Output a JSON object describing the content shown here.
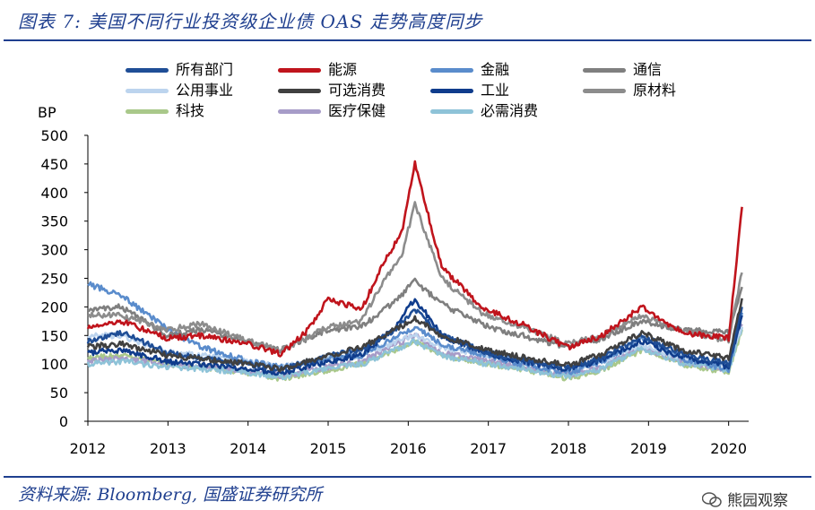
{
  "title": "图表 7:  美国不同行业投资级企业债 OAS 走势高度同步",
  "source": "资料来源:  Bloomberg,  国盛证券研究所",
  "watermark": "熊园观察",
  "chart_data": {
    "type": "line",
    "ylabel": "BP",
    "ylim": [
      0,
      500
    ],
    "yticks": [
      0,
      50,
      100,
      150,
      200,
      250,
      300,
      350,
      400,
      450,
      500
    ],
    "xlim": [
      "2012-01",
      "2020-03"
    ],
    "xticks": [
      "2012",
      "2013",
      "2014",
      "2015",
      "2016",
      "2017",
      "2018",
      "2019",
      "2020"
    ],
    "legend_position": "top",
    "grid": false,
    "series": [
      {
        "name": "所有部门",
        "color": "#1f4e96",
        "points": [
          [
            "2012-01",
            140
          ],
          [
            "2012-06",
            155
          ],
          [
            "2013-01",
            120
          ],
          [
            "2013-06",
            110
          ],
          [
            "2014-01",
            100
          ],
          [
            "2014-06",
            90
          ],
          [
            "2015-01",
            115
          ],
          [
            "2015-06",
            125
          ],
          [
            "2015-11",
            160
          ],
          [
            "2016-02",
            195
          ],
          [
            "2016-06",
            150
          ],
          [
            "2017-01",
            120
          ],
          [
            "2017-06",
            108
          ],
          [
            "2018-01",
            92
          ],
          [
            "2018-06",
            112
          ],
          [
            "2018-12",
            150
          ],
          [
            "2019-06",
            118
          ],
          [
            "2020-01",
            100
          ],
          [
            "2020-03",
            200
          ]
        ]
      },
      {
        "name": "能源",
        "color": "#c0141c",
        "points": [
          [
            "2012-01",
            165
          ],
          [
            "2012-06",
            175
          ],
          [
            "2013-01",
            145
          ],
          [
            "2013-06",
            150
          ],
          [
            "2014-01",
            135
          ],
          [
            "2014-06",
            118
          ],
          [
            "2014-10",
            160
          ],
          [
            "2015-01",
            215
          ],
          [
            "2015-06",
            195
          ],
          [
            "2015-09",
            270
          ],
          [
            "2015-12",
            330
          ],
          [
            "2016-02",
            450
          ],
          [
            "2016-06",
            270
          ],
          [
            "2016-12",
            200
          ],
          [
            "2017-06",
            170
          ],
          [
            "2018-01",
            128
          ],
          [
            "2018-06",
            150
          ],
          [
            "2018-12",
            200
          ],
          [
            "2019-06",
            155
          ],
          [
            "2020-01",
            145
          ],
          [
            "2020-03",
            375
          ]
        ]
      },
      {
        "name": "金融",
        "color": "#5a8ccc",
        "points": [
          [
            "2012-01",
            240
          ],
          [
            "2012-06",
            220
          ],
          [
            "2013-01",
            160
          ],
          [
            "2013-06",
            130
          ],
          [
            "2014-01",
            105
          ],
          [
            "2014-06",
            95
          ],
          [
            "2015-01",
            110
          ],
          [
            "2015-06",
            115
          ],
          [
            "2016-02",
            165
          ],
          [
            "2016-06",
            135
          ],
          [
            "2017-01",
            115
          ],
          [
            "2017-06",
            100
          ],
          [
            "2018-01",
            85
          ],
          [
            "2018-06",
            105
          ],
          [
            "2018-12",
            145
          ],
          [
            "2019-06",
            110
          ],
          [
            "2020-01",
            90
          ],
          [
            "2020-03",
            190
          ]
        ]
      },
      {
        "name": "通信",
        "color": "#7f7f7f",
        "points": [
          [
            "2012-01",
            195
          ],
          [
            "2012-06",
            200
          ],
          [
            "2013-01",
            150
          ],
          [
            "2013-06",
            160
          ],
          [
            "2014-01",
            140
          ],
          [
            "2014-06",
            125
          ],
          [
            "2015-01",
            160
          ],
          [
            "2015-06",
            165
          ],
          [
            "2015-11",
            210
          ],
          [
            "2016-02",
            245
          ],
          [
            "2016-06",
            205
          ],
          [
            "2017-01",
            165
          ],
          [
            "2017-06",
            150
          ],
          [
            "2018-01",
            128
          ],
          [
            "2018-06",
            145
          ],
          [
            "2018-12",
            175
          ],
          [
            "2019-06",
            160
          ],
          [
            "2020-01",
            155
          ],
          [
            "2020-03",
            235
          ]
        ]
      },
      {
        "name": "公用事业",
        "color": "#bcd4ee",
        "points": [
          [
            "2012-01",
            150
          ],
          [
            "2012-06",
            150
          ],
          [
            "2013-01",
            120
          ],
          [
            "2013-06",
            115
          ],
          [
            "2014-01",
            105
          ],
          [
            "2014-06",
            95
          ],
          [
            "2015-01",
            110
          ],
          [
            "2015-06",
            115
          ],
          [
            "2016-02",
            150
          ],
          [
            "2016-06",
            130
          ],
          [
            "2017-01",
            115
          ],
          [
            "2017-06",
            105
          ],
          [
            "2018-01",
            90
          ],
          [
            "2018-06",
            105
          ],
          [
            "2018-12",
            135
          ],
          [
            "2019-06",
            110
          ],
          [
            "2020-01",
            100
          ],
          [
            "2020-03",
            165
          ]
        ]
      },
      {
        "name": "可选消费",
        "color": "#404040",
        "points": [
          [
            "2012-01",
            130
          ],
          [
            "2012-06",
            135
          ],
          [
            "2013-01",
            115
          ],
          [
            "2013-06",
            110
          ],
          [
            "2014-01",
            100
          ],
          [
            "2014-06",
            92
          ],
          [
            "2015-01",
            115
          ],
          [
            "2015-06",
            130
          ],
          [
            "2015-11",
            160
          ],
          [
            "2016-02",
            180
          ],
          [
            "2016-06",
            150
          ],
          [
            "2017-01",
            125
          ],
          [
            "2017-06",
            112
          ],
          [
            "2018-01",
            98
          ],
          [
            "2018-06",
            118
          ],
          [
            "2018-12",
            155
          ],
          [
            "2019-06",
            125
          ],
          [
            "2020-01",
            110
          ],
          [
            "2020-03",
            215
          ]
        ]
      },
      {
        "name": "工业",
        "color": "#0f3c8c",
        "points": [
          [
            "2012-01",
            120
          ],
          [
            "2012-06",
            125
          ],
          [
            "2013-01",
            105
          ],
          [
            "2013-06",
            100
          ],
          [
            "2014-01",
            92
          ],
          [
            "2014-06",
            85
          ],
          [
            "2015-01",
            105
          ],
          [
            "2015-06",
            115
          ],
          [
            "2015-11",
            165
          ],
          [
            "2016-02",
            215
          ],
          [
            "2016-06",
            150
          ],
          [
            "2017-01",
            118
          ],
          [
            "2017-06",
            105
          ],
          [
            "2018-01",
            90
          ],
          [
            "2018-06",
            108
          ],
          [
            "2018-12",
            140
          ],
          [
            "2019-06",
            112
          ],
          [
            "2020-01",
            95
          ],
          [
            "2020-03",
            185
          ]
        ]
      },
      {
        "name": "原材料",
        "color": "#8c8c8c",
        "points": [
          [
            "2012-01",
            185
          ],
          [
            "2012-06",
            185
          ],
          [
            "2013-01",
            160
          ],
          [
            "2013-06",
            170
          ],
          [
            "2014-01",
            140
          ],
          [
            "2014-06",
            125
          ],
          [
            "2015-01",
            165
          ],
          [
            "2015-06",
            175
          ],
          [
            "2015-09",
            240
          ],
          [
            "2015-12",
            290
          ],
          [
            "2016-02",
            380
          ],
          [
            "2016-06",
            250
          ],
          [
            "2016-12",
            190
          ],
          [
            "2017-06",
            165
          ],
          [
            "2018-01",
            135
          ],
          [
            "2018-06",
            150
          ],
          [
            "2018-12",
            185
          ],
          [
            "2019-06",
            160
          ],
          [
            "2020-01",
            140
          ],
          [
            "2020-03",
            260
          ]
        ]
      },
      {
        "name": "科技",
        "color": "#a9c88a",
        "points": [
          [
            "2012-01",
            110
          ],
          [
            "2012-06",
            115
          ],
          [
            "2013-01",
            100
          ],
          [
            "2013-06",
            95
          ],
          [
            "2014-01",
            85
          ],
          [
            "2014-06",
            75
          ],
          [
            "2015-01",
            90
          ],
          [
            "2015-06",
            100
          ],
          [
            "2016-02",
            140
          ],
          [
            "2016-06",
            115
          ],
          [
            "2017-01",
            100
          ],
          [
            "2017-06",
            92
          ],
          [
            "2018-01",
            75
          ],
          [
            "2018-06",
            90
          ],
          [
            "2018-12",
            125
          ],
          [
            "2019-06",
            100
          ],
          [
            "2020-01",
            85
          ],
          [
            "2020-03",
            160
          ]
        ]
      },
      {
        "name": "医疗保健",
        "color": "#a79cc8",
        "points": [
          [
            "2012-01",
            105
          ],
          [
            "2012-06",
            110
          ],
          [
            "2013-01",
            100
          ],
          [
            "2013-06",
            95
          ],
          [
            "2014-01",
            88
          ],
          [
            "2014-06",
            80
          ],
          [
            "2015-01",
            95
          ],
          [
            "2015-06",
            105
          ],
          [
            "2016-02",
            150
          ],
          [
            "2016-06",
            120
          ],
          [
            "2017-01",
            105
          ],
          [
            "2017-06",
            95
          ],
          [
            "2018-01",
            80
          ],
          [
            "2018-06",
            95
          ],
          [
            "2018-12",
            130
          ],
          [
            "2019-06",
            105
          ],
          [
            "2020-01",
            90
          ],
          [
            "2020-03",
            170
          ]
        ]
      },
      {
        "name": "必需消费",
        "color": "#8ec3d8",
        "points": [
          [
            "2012-01",
            100
          ],
          [
            "2012-06",
            105
          ],
          [
            "2013-01",
            95
          ],
          [
            "2013-06",
            92
          ],
          [
            "2014-01",
            85
          ],
          [
            "2014-06",
            78
          ],
          [
            "2015-01",
            92
          ],
          [
            "2015-06",
            100
          ],
          [
            "2016-02",
            140
          ],
          [
            "2016-06",
            115
          ],
          [
            "2017-01",
            100
          ],
          [
            "2017-06",
            92
          ],
          [
            "2018-01",
            78
          ],
          [
            "2018-06",
            92
          ],
          [
            "2018-12",
            128
          ],
          [
            "2019-06",
            102
          ],
          [
            "2020-01",
            88
          ],
          [
            "2020-03",
            165
          ]
        ]
      }
    ]
  }
}
